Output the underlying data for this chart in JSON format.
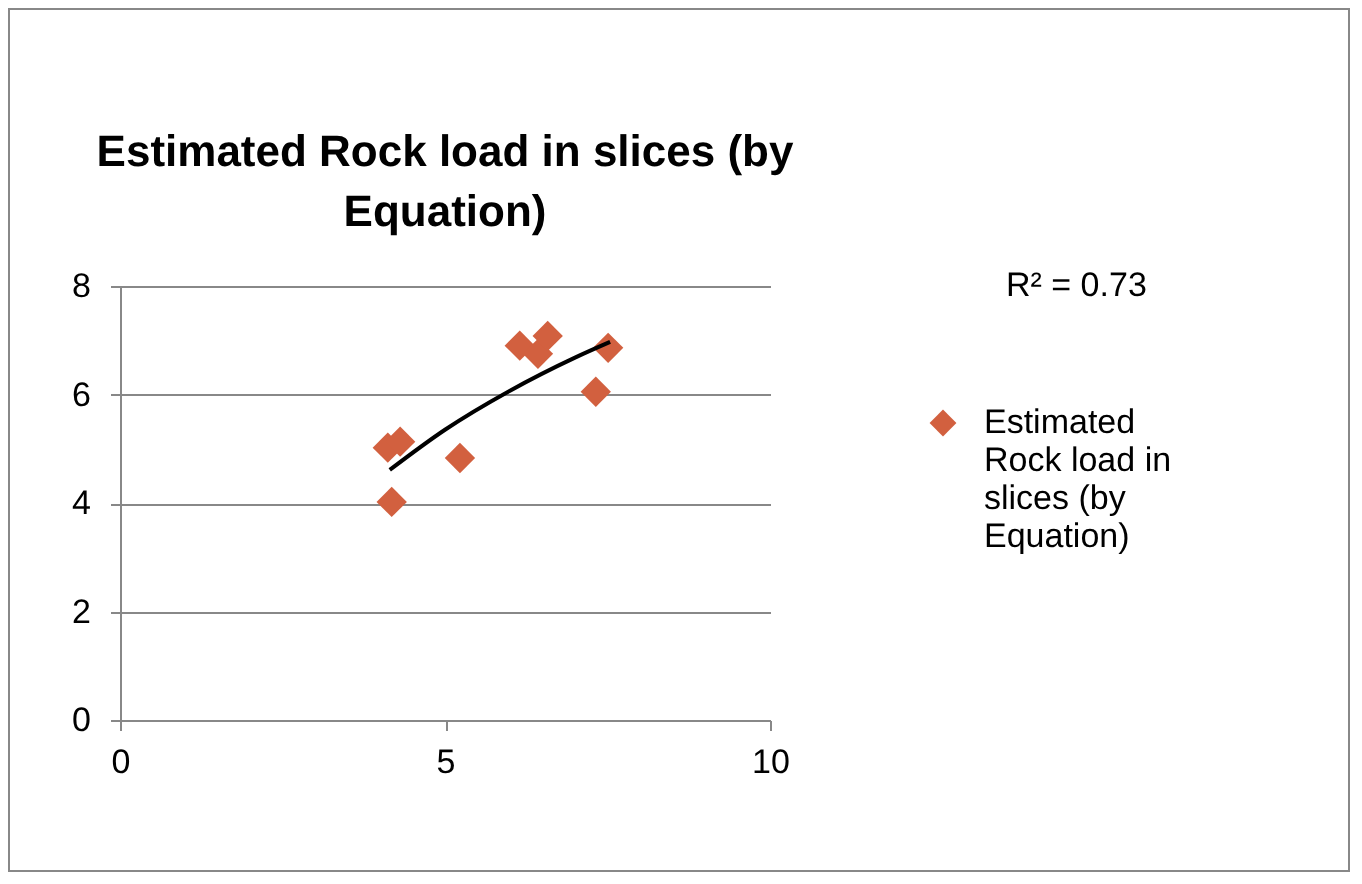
{
  "chart_data": {
    "type": "scatter",
    "title": "Estimated Rock load in slices (by Equation)",
    "series": [
      {
        "name": "Estimated Rock load in slices (by Equation)",
        "color": "#d2603f",
        "x": [
          4.18,
          4.12,
          4.31,
          5.23,
          6.15,
          6.43,
          6.58,
          7.32,
          7.51
        ],
        "values": [
          4.02,
          5.02,
          5.13,
          4.83,
          6.9,
          6.75,
          7.08,
          6.05,
          6.86
        ]
      },
      {
        "type": "line",
        "marker": "none",
        "color": "#000000",
        "x": [
          4.15,
          5,
          6,
          7,
          7.54
        ],
        "values": [
          4.61,
          5.35,
          6.07,
          6.68,
          6.97
        ]
      }
    ],
    "annotations": [
      "R² = 0.73"
    ],
    "xlim": [
      0,
      10
    ],
    "xticks": [
      0,
      5,
      10
    ],
    "ylim": [
      0,
      8
    ],
    "yticks": [
      0,
      2,
      4,
      6,
      8
    ],
    "grid": "y",
    "legend": "right",
    "marker": "diamond"
  }
}
